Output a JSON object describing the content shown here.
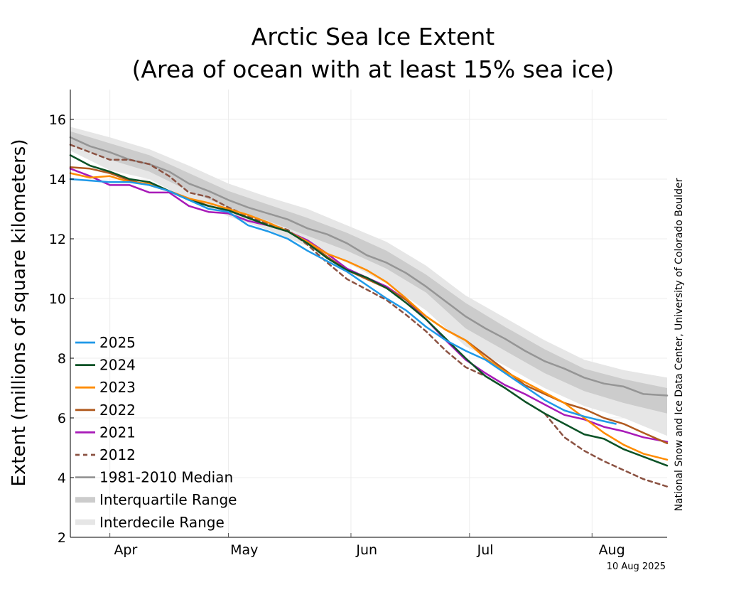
{
  "chart_data": {
    "type": "line",
    "title": "Arctic Sea Ice Extent",
    "subtitle": "(Area of ocean with at least 15% sea ice)",
    "xlabel": "",
    "ylabel": "Extent (millions of square kilometers)",
    "x_range_day_of_year": [
      81,
      232
    ],
    "ylim": [
      2,
      17
    ],
    "yticks": [
      2,
      4,
      6,
      8,
      10,
      12,
      14,
      16
    ],
    "month_boundaries_day_of_year": [
      91,
      121,
      152,
      182,
      213
    ],
    "month_labels": [
      {
        "label": "Apr",
        "center_day": 95
      },
      {
        "label": "May",
        "center_day": 125
      },
      {
        "label": "Jun",
        "center_day": 156
      },
      {
        "label": "Jul",
        "center_day": 186
      },
      {
        "label": "Aug",
        "center_day": 218
      }
    ],
    "grid": true,
    "legend_position": "bottom-left",
    "x_values_note_dates": "x values are day of year",
    "series": [
      {
        "name": "2025",
        "color": "#1f99e8",
        "dash": false,
        "x": [
          81,
          86,
          91,
          96,
          101,
          106,
          111,
          116,
          121,
          126,
          131,
          136,
          141,
          146,
          151,
          156,
          161,
          166,
          171,
          176,
          181,
          186,
          191,
          196,
          201,
          206,
          211,
          214,
          219
        ],
        "y": [
          14.0,
          13.95,
          13.9,
          13.9,
          13.8,
          13.6,
          13.3,
          13.0,
          12.9,
          12.45,
          12.25,
          12.0,
          11.6,
          11.25,
          10.9,
          10.45,
          10.0,
          9.6,
          9.05,
          8.6,
          8.25,
          7.95,
          7.5,
          7.05,
          6.6,
          6.25,
          6.05,
          5.95,
          5.8
        ]
      },
      {
        "name": "2024",
        "color": "#0b5226",
        "dash": false,
        "x": [
          81,
          86,
          91,
          96,
          101,
          106,
          111,
          116,
          121,
          126,
          131,
          136,
          141,
          146,
          151,
          156,
          161,
          166,
          171,
          176,
          181,
          186,
          191,
          196,
          201,
          206,
          211,
          216,
          221,
          226,
          232
        ],
        "y": [
          14.8,
          14.45,
          14.25,
          14.0,
          13.9,
          13.6,
          13.3,
          13.1,
          12.95,
          12.7,
          12.45,
          12.25,
          11.85,
          11.35,
          10.95,
          10.7,
          10.35,
          9.85,
          9.3,
          8.65,
          8.0,
          7.4,
          7.0,
          6.55,
          6.15,
          5.8,
          5.45,
          5.3,
          4.95,
          4.7,
          4.4
        ]
      },
      {
        "name": "2023",
        "color": "#ff8c00",
        "dash": false,
        "x": [
          81,
          86,
          91,
          96,
          101,
          106,
          111,
          116,
          121,
          126,
          131,
          136,
          141,
          146,
          151,
          156,
          161,
          166,
          171,
          176,
          181,
          186,
          191,
          196,
          201,
          206,
          211,
          216,
          221,
          226,
          232
        ],
        "y": [
          14.2,
          14.05,
          14.1,
          13.9,
          13.85,
          13.6,
          13.35,
          13.2,
          13.0,
          12.8,
          12.55,
          12.25,
          11.9,
          11.5,
          11.25,
          10.95,
          10.55,
          10.0,
          9.4,
          8.95,
          8.6,
          8.0,
          7.55,
          7.2,
          6.85,
          6.5,
          6.0,
          5.5,
          5.1,
          4.8,
          4.6
        ]
      },
      {
        "name": "2022",
        "color": "#b15a1f",
        "dash": false,
        "x": [
          81,
          86,
          91,
          96,
          101,
          106,
          111,
          116,
          121,
          126,
          131,
          136,
          141,
          146,
          151,
          156,
          161,
          166,
          171,
          176,
          181,
          186,
          191,
          196,
          201,
          206,
          211,
          216,
          221,
          226,
          232
        ],
        "y": [
          14.4,
          14.35,
          14.2,
          13.95,
          13.8,
          13.6,
          13.35,
          13.1,
          12.95,
          12.7,
          12.45,
          12.25,
          11.9,
          11.4,
          10.95,
          10.65,
          10.35,
          9.95,
          9.4,
          8.95,
          8.6,
          8.1,
          7.6,
          7.1,
          6.8,
          6.5,
          6.3,
          6.0,
          5.8,
          5.5,
          5.15
        ]
      },
      {
        "name": "2021",
        "color": "#a81ab8",
        "dash": false,
        "x": [
          81,
          86,
          91,
          96,
          101,
          106,
          111,
          116,
          121,
          126,
          131,
          136,
          141,
          146,
          151,
          156,
          161,
          166,
          171,
          176,
          181,
          186,
          191,
          196,
          201,
          206,
          211,
          216,
          221,
          226,
          232
        ],
        "y": [
          14.35,
          14.1,
          13.8,
          13.8,
          13.55,
          13.55,
          13.1,
          12.9,
          12.85,
          12.6,
          12.45,
          12.25,
          11.95,
          11.5,
          11.0,
          10.7,
          10.4,
          9.95,
          9.3,
          8.6,
          7.95,
          7.5,
          7.1,
          6.8,
          6.45,
          6.1,
          5.95,
          5.7,
          5.55,
          5.35,
          5.2
        ]
      },
      {
        "name": "2012",
        "color": "#8b5242",
        "dash": true,
        "x": [
          81,
          86,
          91,
          96,
          101,
          106,
          111,
          116,
          121,
          126,
          131,
          136,
          141,
          146,
          151,
          156,
          161,
          166,
          171,
          176,
          181,
          186,
          191,
          196,
          201,
          206,
          211,
          216,
          221,
          226,
          232
        ],
        "y": [
          15.15,
          14.9,
          14.65,
          14.65,
          14.5,
          14.1,
          13.55,
          13.4,
          13.05,
          12.75,
          12.5,
          12.3,
          11.8,
          11.2,
          10.65,
          10.3,
          9.95,
          9.45,
          8.9,
          8.25,
          7.7,
          7.4,
          7.0,
          6.55,
          6.15,
          5.35,
          4.9,
          4.55,
          4.25,
          3.95,
          3.7
        ]
      },
      {
        "name": "1981-2010 Median",
        "color": "#959595",
        "dash": false,
        "x": [
          81,
          86,
          91,
          96,
          101,
          106,
          111,
          116,
          121,
          126,
          131,
          136,
          141,
          146,
          151,
          156,
          161,
          166,
          171,
          176,
          181,
          186,
          191,
          196,
          201,
          206,
          211,
          216,
          221,
          226,
          232
        ],
        "y": [
          15.4,
          15.1,
          14.9,
          14.65,
          14.5,
          14.25,
          13.85,
          13.6,
          13.3,
          13.05,
          12.85,
          12.65,
          12.35,
          12.15,
          11.85,
          11.45,
          11.2,
          10.85,
          10.4,
          9.9,
          9.4,
          9.0,
          8.65,
          8.25,
          7.9,
          7.65,
          7.35,
          7.15,
          7.05,
          6.8,
          6.75
        ]
      }
    ],
    "bands": [
      {
        "name": "Interdecile Range",
        "color": "#e6e6e6",
        "x": [
          81,
          91,
          101,
          111,
          121,
          131,
          141,
          151,
          161,
          171,
          181,
          191,
          201,
          211,
          221,
          232
        ],
        "upper": [
          15.75,
          15.4,
          15.0,
          14.45,
          13.85,
          13.4,
          13.0,
          12.45,
          11.9,
          11.1,
          10.1,
          9.35,
          8.6,
          7.95,
          7.6,
          7.35
        ],
        "lower": [
          14.95,
          14.3,
          14.0,
          13.3,
          12.75,
          12.3,
          11.75,
          11.2,
          10.5,
          9.6,
          8.4,
          7.75,
          7.0,
          6.4,
          6.0,
          5.4
        ]
      },
      {
        "name": "Interquartile Range",
        "color": "#cccccc",
        "x": [
          81,
          91,
          101,
          111,
          121,
          131,
          141,
          151,
          161,
          171,
          181,
          191,
          201,
          211,
          221,
          232
        ],
        "upper": [
          15.6,
          15.2,
          14.8,
          14.2,
          13.6,
          13.15,
          12.7,
          12.2,
          11.6,
          10.8,
          9.85,
          9.05,
          8.3,
          7.65,
          7.3,
          7.0
        ],
        "lower": [
          15.15,
          14.65,
          14.25,
          13.6,
          13.05,
          12.6,
          12.1,
          11.6,
          11.0,
          10.2,
          9.0,
          8.25,
          7.5,
          6.9,
          6.5,
          6.15
        ]
      }
    ],
    "legend": [
      "2025",
      "2024",
      "2023",
      "2022",
      "2021",
      "2012",
      "1981-2010 Median",
      "Interquartile Range",
      "Interdecile Range"
    ],
    "credit": "National Snow and Ice Data Center, University of Colorado Boulder",
    "date_stamp": "10 Aug 2025"
  }
}
